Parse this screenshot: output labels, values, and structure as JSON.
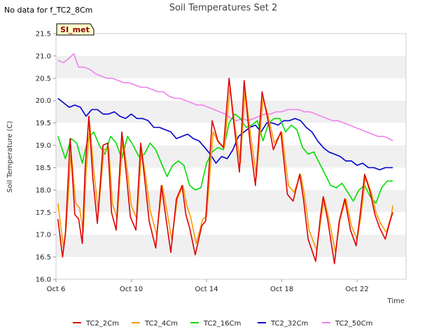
{
  "nodata_text": "No data for f_TC2_8Cm",
  "site_label": "SI_met",
  "chart_data": {
    "type": "line",
    "title": "Soil Temperatures Set 2",
    "xlabel": "Time",
    "ylabel": "Soil Temperature (C)",
    "xlim": [
      6.0,
      24.6
    ],
    "ylim": [
      16.0,
      21.5
    ],
    "yticks": [
      16.0,
      16.5,
      17.0,
      17.5,
      18.0,
      18.5,
      19.0,
      19.5,
      20.0,
      20.5,
      21.0,
      21.5
    ],
    "ytick_labels": [
      "16.0",
      "16.5",
      "17.0",
      "17.5",
      "18.0",
      "18.5",
      "19.0",
      "19.5",
      "20.0",
      "20.5",
      "21.0",
      "21.5"
    ],
    "xticks": [
      6,
      10,
      14,
      18,
      22
    ],
    "xtick_labels": [
      "Oct 6",
      "Oct 10",
      "Oct 14",
      "Oct 18",
      "Oct 22"
    ],
    "grid": "horizontal bands",
    "legend_position": "bottom",
    "series": [
      {
        "name": "TC2_2Cm",
        "color": "#dd0000",
        "x": [
          6.1,
          6.35,
          6.5,
          6.75,
          7.0,
          7.2,
          7.4,
          7.55,
          7.75,
          7.95,
          8.2,
          8.5,
          8.75,
          8.95,
          9.2,
          9.5,
          9.75,
          9.95,
          10.25,
          10.5,
          10.75,
          10.95,
          11.3,
          11.6,
          11.9,
          12.1,
          12.4,
          12.7,
          12.9,
          13.1,
          13.4,
          13.75,
          13.95,
          14.3,
          14.6,
          14.9,
          15.2,
          15.45,
          15.75,
          16.0,
          16.3,
          16.6,
          16.95,
          17.2,
          17.55,
          17.95,
          18.3,
          18.6,
          18.95,
          19.15,
          19.4,
          19.8,
          20.05,
          20.2,
          20.45,
          20.8,
          21.05,
          21.35,
          21.65,
          21.95,
          22.15,
          22.4,
          22.7,
          22.95,
          23.2,
          23.5,
          23.75,
          23.9
        ],
        "y": [
          17.35,
          16.5,
          17.0,
          19.15,
          17.45,
          17.35,
          16.8,
          18.5,
          19.65,
          18.3,
          17.25,
          19.0,
          19.05,
          17.5,
          17.1,
          19.3,
          18.3,
          17.4,
          17.1,
          19.05,
          18.1,
          17.3,
          16.7,
          18.1,
          17.2,
          16.6,
          17.8,
          18.1,
          17.45,
          17.15,
          16.55,
          17.2,
          17.3,
          19.55,
          19.1,
          18.95,
          20.5,
          19.5,
          18.4,
          20.45,
          19.1,
          18.1,
          20.2,
          19.7,
          18.9,
          19.3,
          17.9,
          17.75,
          18.35,
          17.8,
          16.9,
          16.4,
          17.4,
          17.85,
          17.3,
          16.35,
          17.3,
          17.8,
          17.1,
          16.75,
          17.4,
          18.35,
          17.95,
          17.45,
          17.15,
          16.9,
          17.3,
          17.5
        ]
      },
      {
        "name": "TC2_4Cm",
        "color": "#ff9900",
        "x": [
          6.1,
          6.4,
          6.55,
          6.8,
          7.05,
          7.25,
          7.45,
          7.6,
          7.8,
          8.0,
          8.25,
          8.55,
          8.8,
          9.0,
          9.25,
          9.55,
          9.8,
          10.0,
          10.3,
          10.55,
          10.8,
          11.0,
          11.35,
          11.65,
          11.95,
          12.15,
          12.45,
          12.75,
          12.95,
          13.15,
          13.45,
          13.8,
          14.0,
          14.35,
          14.65,
          14.95,
          15.25,
          15.5,
          15.8,
          16.05,
          16.35,
          16.65,
          17.0,
          17.25,
          17.6,
          18.0,
          18.35,
          18.65,
          19.0,
          19.2,
          19.45,
          19.85,
          20.1,
          20.25,
          20.5,
          20.85,
          21.1,
          21.4,
          21.7,
          22.0,
          22.2,
          22.45,
          22.75,
          23.0,
          23.25,
          23.55,
          23.8,
          23.9
        ],
        "y": [
          17.7,
          16.7,
          17.2,
          18.85,
          17.7,
          17.6,
          17.05,
          18.4,
          19.45,
          18.45,
          17.5,
          18.9,
          18.95,
          17.7,
          17.35,
          19.15,
          18.4,
          17.65,
          17.35,
          18.9,
          18.2,
          17.55,
          17.0,
          18.1,
          17.4,
          16.9,
          17.8,
          18.1,
          17.65,
          17.4,
          16.8,
          17.35,
          17.4,
          19.3,
          19.05,
          18.95,
          20.3,
          19.45,
          18.6,
          20.25,
          19.2,
          18.3,
          20.05,
          19.7,
          19.05,
          19.3,
          18.1,
          17.95,
          18.35,
          17.9,
          17.1,
          16.65,
          17.4,
          17.8,
          17.35,
          16.6,
          17.35,
          17.8,
          17.2,
          16.9,
          17.4,
          18.3,
          17.95,
          17.5,
          17.25,
          17.05,
          17.4,
          17.65
        ]
      },
      {
        "name": "TC2_16Cm",
        "color": "#00dd00",
        "x": [
          6.1,
          6.5,
          6.8,
          7.1,
          7.4,
          7.7,
          8.0,
          8.3,
          8.6,
          8.9,
          9.2,
          9.5,
          9.8,
          10.1,
          10.4,
          10.7,
          11.0,
          11.3,
          11.6,
          11.9,
          12.2,
          12.5,
          12.8,
          13.1,
          13.4,
          13.7,
          14.0,
          14.3,
          14.6,
          14.9,
          15.2,
          15.5,
          15.8,
          16.1,
          16.4,
          16.7,
          17.0,
          17.3,
          17.6,
          17.9,
          18.2,
          18.5,
          18.8,
          19.1,
          19.4,
          19.7,
          20.0,
          20.3,
          20.6,
          20.9,
          21.2,
          21.5,
          21.8,
          22.1,
          22.4,
          22.7,
          23.0,
          23.3,
          23.6,
          23.9
        ],
        "y": [
          19.2,
          18.7,
          19.15,
          19.05,
          18.6,
          19.15,
          19.3,
          19.0,
          18.8,
          19.2,
          19.05,
          18.7,
          19.2,
          19.0,
          18.75,
          18.8,
          19.05,
          18.9,
          18.6,
          18.3,
          18.55,
          18.65,
          18.55,
          18.1,
          18.0,
          18.05,
          18.6,
          18.85,
          18.95,
          18.9,
          19.5,
          19.7,
          19.6,
          19.4,
          19.45,
          19.55,
          19.1,
          19.5,
          19.6,
          19.6,
          19.3,
          19.45,
          19.35,
          18.95,
          18.8,
          18.85,
          18.6,
          18.35,
          18.1,
          18.05,
          18.15,
          17.95,
          17.75,
          18.0,
          18.1,
          17.85,
          17.7,
          18.05,
          18.2,
          18.2
        ]
      },
      {
        "name": "TC2_32Cm",
        "color": "#0000cc",
        "x": [
          6.1,
          6.4,
          6.7,
          7.0,
          7.3,
          7.6,
          7.9,
          8.2,
          8.5,
          8.8,
          9.1,
          9.4,
          9.7,
          10.0,
          10.3,
          10.6,
          10.9,
          11.2,
          11.5,
          11.8,
          12.1,
          12.4,
          12.7,
          13.0,
          13.3,
          13.6,
          13.9,
          14.2,
          14.5,
          14.8,
          15.1,
          15.4,
          15.7,
          16.0,
          16.3,
          16.6,
          16.9,
          17.2,
          17.5,
          17.8,
          18.1,
          18.4,
          18.7,
          19.0,
          19.3,
          19.6,
          19.9,
          20.2,
          20.5,
          20.8,
          21.1,
          21.4,
          21.7,
          22.0,
          22.3,
          22.6,
          22.9,
          23.2,
          23.5,
          23.9
        ],
        "y": [
          20.05,
          19.95,
          19.85,
          19.9,
          19.85,
          19.65,
          19.8,
          19.8,
          19.7,
          19.7,
          19.75,
          19.65,
          19.6,
          19.7,
          19.6,
          19.6,
          19.55,
          19.4,
          19.4,
          19.35,
          19.3,
          19.15,
          19.2,
          19.25,
          19.15,
          19.1,
          18.95,
          18.8,
          18.6,
          18.75,
          18.7,
          18.9,
          19.2,
          19.3,
          19.4,
          19.45,
          19.3,
          19.5,
          19.5,
          19.45,
          19.55,
          19.55,
          19.6,
          19.55,
          19.4,
          19.3,
          19.1,
          18.95,
          18.85,
          18.8,
          18.75,
          18.65,
          18.65,
          18.55,
          18.6,
          18.5,
          18.5,
          18.45,
          18.5,
          18.5
        ]
      },
      {
        "name": "TC2_50Cm",
        "color": "#ee82ee",
        "x": [
          6.1,
          6.4,
          6.7,
          6.95,
          7.2,
          7.5,
          7.8,
          8.1,
          8.4,
          8.7,
          9.0,
          9.3,
          9.6,
          9.9,
          10.2,
          10.5,
          10.8,
          11.1,
          11.4,
          11.7,
          12.0,
          12.3,
          12.6,
          12.9,
          13.2,
          13.5,
          13.8,
          14.1,
          14.4,
          14.7,
          15.0,
          15.3,
          15.6,
          15.9,
          16.2,
          16.5,
          16.8,
          17.1,
          17.4,
          17.7,
          18.0,
          18.3,
          18.6,
          18.9,
          19.2,
          19.5,
          19.8,
          20.1,
          20.4,
          20.7,
          21.0,
          21.3,
          21.6,
          21.9,
          22.2,
          22.5,
          22.8,
          23.1,
          23.4,
          23.7,
          23.9
        ],
        "y": [
          20.9,
          20.85,
          20.95,
          21.05,
          20.75,
          20.75,
          20.7,
          20.6,
          20.55,
          20.5,
          20.5,
          20.45,
          20.4,
          20.4,
          20.35,
          20.3,
          20.3,
          20.25,
          20.2,
          20.2,
          20.1,
          20.05,
          20.05,
          20.0,
          19.95,
          19.9,
          19.9,
          19.85,
          19.8,
          19.75,
          19.7,
          19.6,
          19.55,
          19.6,
          19.55,
          19.6,
          19.65,
          19.7,
          19.7,
          19.75,
          19.75,
          19.8,
          19.8,
          19.8,
          19.75,
          19.75,
          19.7,
          19.65,
          19.6,
          19.55,
          19.55,
          19.5,
          19.45,
          19.4,
          19.35,
          19.3,
          19.25,
          19.2,
          19.2,
          19.15,
          19.1
        ]
      }
    ]
  }
}
